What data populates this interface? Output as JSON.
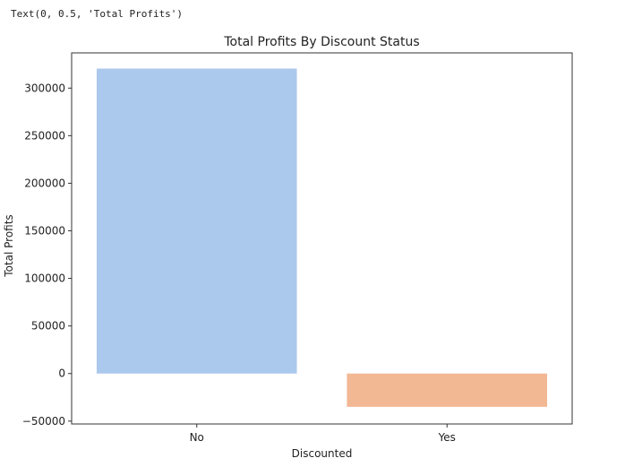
{
  "cell_output": "Text(0, 0.5, 'Total Profits')",
  "chart_data": {
    "type": "bar",
    "title": "Total Profits By Discount Status",
    "xlabel": "Discounted",
    "ylabel": "Total Profits",
    "categories": [
      "No",
      "Yes"
    ],
    "values": [
      320500,
      -35000
    ],
    "colors": [
      "#abc9ed",
      "#f2b894"
    ],
    "ylim": [
      -53000,
      337000
    ],
    "yticks": [
      -50000,
      0,
      50000,
      100000,
      150000,
      200000,
      250000,
      300000
    ],
    "grid": false,
    "legend": "none"
  }
}
